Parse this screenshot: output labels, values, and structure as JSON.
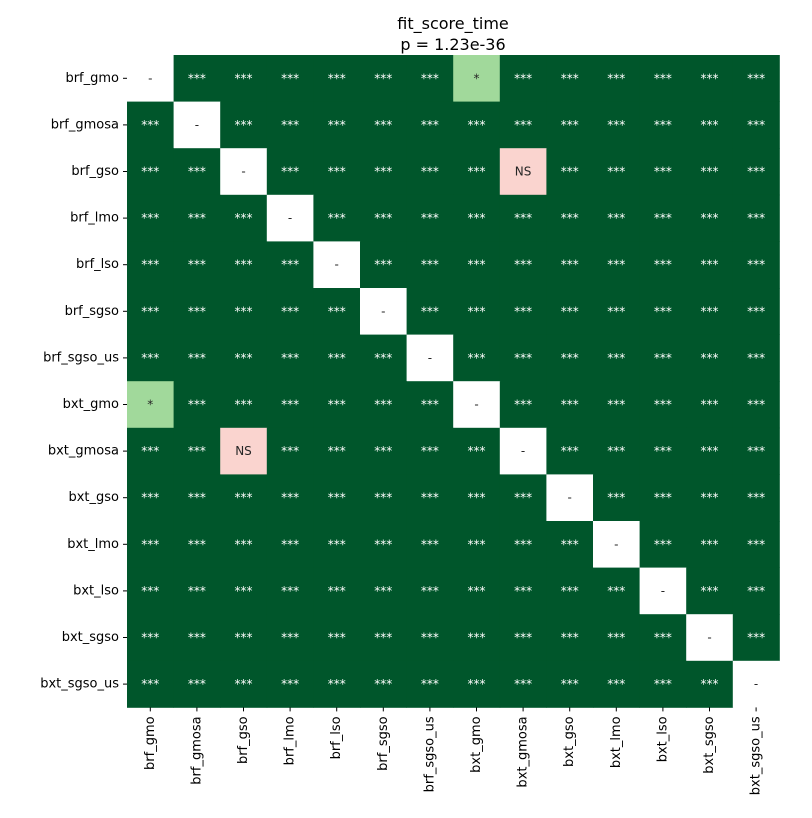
{
  "chart_data": {
    "type": "heatmap",
    "title": "fit_score_time",
    "subtitle": "p = 1.23e-36",
    "row_labels": [
      "brf_gmo",
      "brf_gmosa",
      "brf_gso",
      "brf_lmo",
      "brf_lso",
      "brf_sgso",
      "brf_sgso_us",
      "bxt_gmo",
      "bxt_gmosa",
      "bxt_gso",
      "bxt_lmo",
      "bxt_lso",
      "bxt_sgso",
      "bxt_sgso_us"
    ],
    "col_labels": [
      "brf_gmo",
      "brf_gmosa",
      "brf_gso",
      "brf_lmo",
      "brf_lso",
      "brf_sgso",
      "brf_sgso_us",
      "bxt_gmo",
      "bxt_gmosa",
      "bxt_gso",
      "bxt_lmo",
      "bxt_lso",
      "bxt_sgso",
      "bxt_sgso_us"
    ],
    "matrix": [
      [
        "-",
        "***",
        "***",
        "***",
        "***",
        "***",
        "***",
        "*",
        "***",
        "***",
        "***",
        "***",
        "***",
        "***"
      ],
      [
        "***",
        "-",
        "***",
        "***",
        "***",
        "***",
        "***",
        "***",
        "***",
        "***",
        "***",
        "***",
        "***",
        "***"
      ],
      [
        "***",
        "***",
        "-",
        "***",
        "***",
        "***",
        "***",
        "***",
        "NS",
        "***",
        "***",
        "***",
        "***",
        "***"
      ],
      [
        "***",
        "***",
        "***",
        "-",
        "***",
        "***",
        "***",
        "***",
        "***",
        "***",
        "***",
        "***",
        "***",
        "***"
      ],
      [
        "***",
        "***",
        "***",
        "***",
        "-",
        "***",
        "***",
        "***",
        "***",
        "***",
        "***",
        "***",
        "***",
        "***"
      ],
      [
        "***",
        "***",
        "***",
        "***",
        "***",
        "-",
        "***",
        "***",
        "***",
        "***",
        "***",
        "***",
        "***",
        "***"
      ],
      [
        "***",
        "***",
        "***",
        "***",
        "***",
        "***",
        "-",
        "***",
        "***",
        "***",
        "***",
        "***",
        "***",
        "***"
      ],
      [
        "*",
        "***",
        "***",
        "***",
        "***",
        "***",
        "***",
        "-",
        "***",
        "***",
        "***",
        "***",
        "***",
        "***"
      ],
      [
        "***",
        "***",
        "NS",
        "***",
        "***",
        "***",
        "***",
        "***",
        "-",
        "***",
        "***",
        "***",
        "***",
        "***"
      ],
      [
        "***",
        "***",
        "***",
        "***",
        "***",
        "***",
        "***",
        "***",
        "***",
        "-",
        "***",
        "***",
        "***",
        "***"
      ],
      [
        "***",
        "***",
        "***",
        "***",
        "***",
        "***",
        "***",
        "***",
        "***",
        "***",
        "-",
        "***",
        "***",
        "***"
      ],
      [
        "***",
        "***",
        "***",
        "***",
        "***",
        "***",
        "***",
        "***",
        "***",
        "***",
        "***",
        "-",
        "***",
        "***"
      ],
      [
        "***",
        "***",
        "***",
        "***",
        "***",
        "***",
        "***",
        "***",
        "***",
        "***",
        "***",
        "***",
        "-",
        "***"
      ],
      [
        "***",
        "***",
        "***",
        "***",
        "***",
        "***",
        "***",
        "***",
        "***",
        "***",
        "***",
        "***",
        "***",
        "-"
      ]
    ],
    "colors": {
      "***": "#00562b",
      "*": "#a1d99b",
      "NS": "#fad4cf",
      "-": "#ffffff"
    },
    "text_colors": {
      "***": "#ffffff",
      "*": "#262626",
      "NS": "#262626",
      "-": "#262626"
    },
    "legend": "none",
    "grid": false
  }
}
